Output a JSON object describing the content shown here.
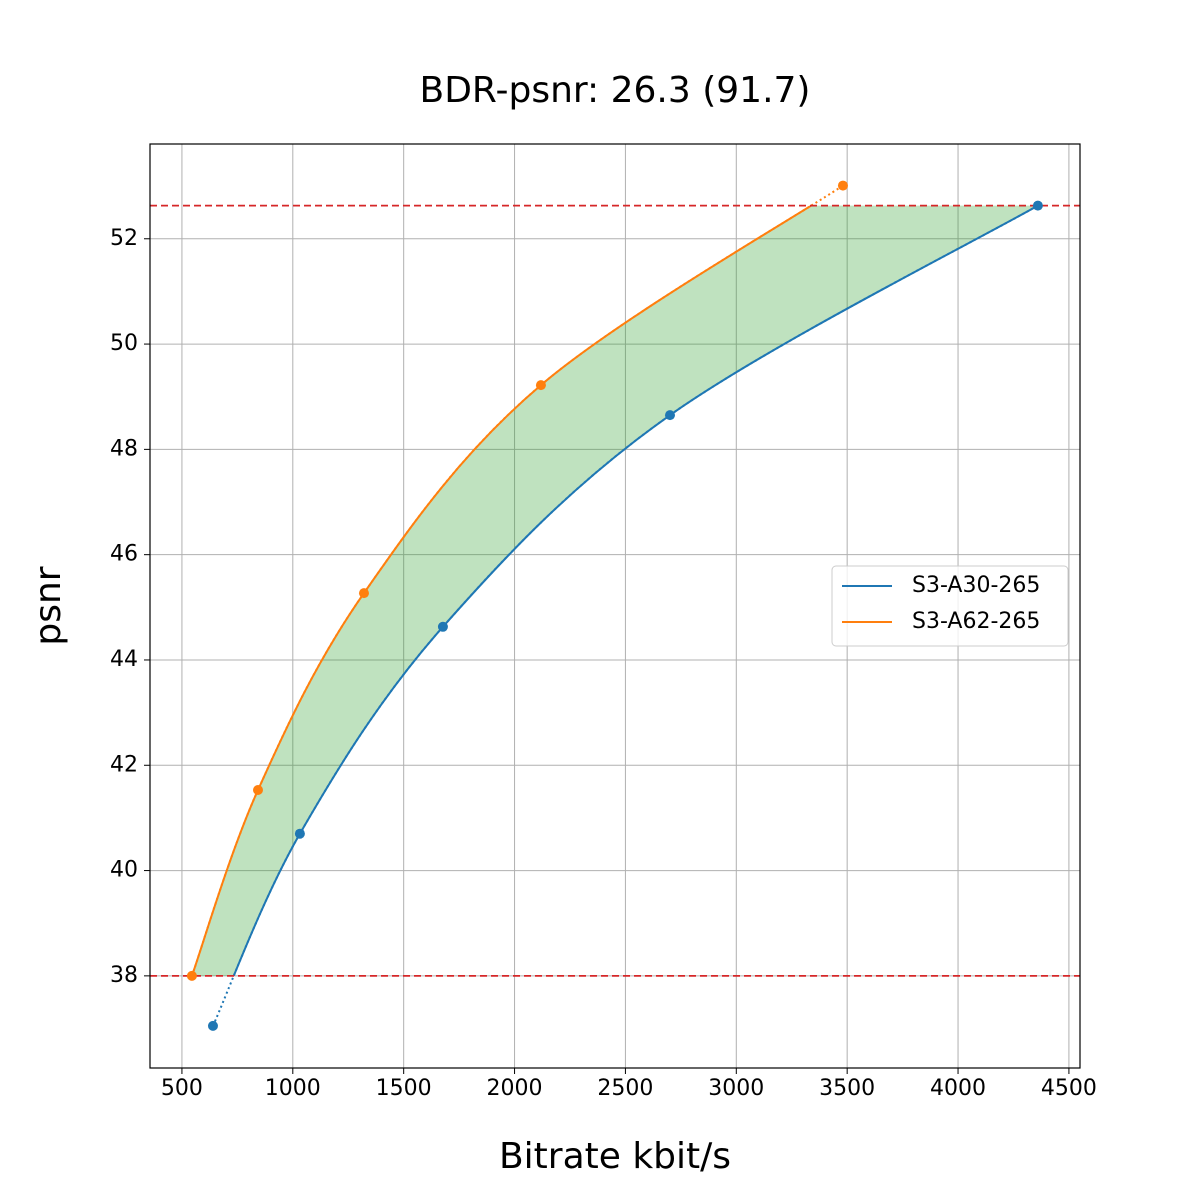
{
  "chart_data": {
    "type": "rd_curves",
    "title": "BDR-psnr: 26.3 (91.7)",
    "x_label": "Bitrate kbit/s",
    "y_label": "psnr",
    "series": [
      {
        "name": "S3-A30-265",
        "color": "#1f77b4",
        "x": [
          640,
          1032,
          1677,
          2701,
          4360
        ],
        "values": [
          37.05,
          40.7,
          44.63,
          48.65,
          52.63
        ]
      },
      {
        "name": "S3-A62-265",
        "color": "#ff7f0e",
        "x": [
          545,
          843,
          1321,
          2119,
          3481
        ],
        "values": [
          38.0,
          41.53,
          45.27,
          49.22,
          53.01
        ]
      }
    ],
    "reference_lines": [
      38.0,
      52.63
    ],
    "reference_color": "#d62728",
    "fill_color": "#2ca02c",
    "xlim": [
      356,
      4550
    ],
    "ylim": [
      36.25,
      53.8
    ],
    "xticks": [
      500,
      1000,
      1500,
      2000,
      2500,
      3000,
      3500,
      4000,
      4500
    ],
    "yticks": [
      38,
      40,
      42,
      44,
      46,
      48,
      50,
      52
    ],
    "grid": true,
    "legend": "center right"
  }
}
